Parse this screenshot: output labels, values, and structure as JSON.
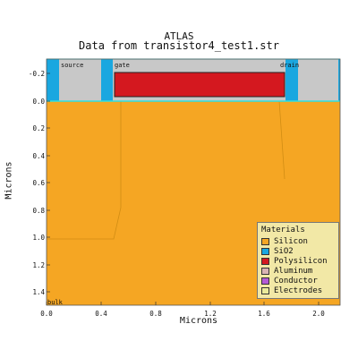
{
  "title": "ATLAS",
  "subtitle": "Data from transistor4_test1.str",
  "axes": {
    "x_label": "Microns",
    "y_label": "Microns",
    "x_ticks": [
      "0.0",
      "0.4",
      "0.8",
      "1.2",
      "1.6",
      "2.0"
    ],
    "y_ticks": [
      "-0.2",
      "0.0",
      "0.2",
      "0.4",
      "0.6",
      "0.8",
      "1.0",
      "1.2",
      "1.4"
    ]
  },
  "region_labels": {
    "source": "source",
    "gate": "gate",
    "drain": "drain",
    "bulk": "bulk"
  },
  "legend": {
    "title": "Materials",
    "items": [
      {
        "label": "Silicon",
        "color": "#f5a623"
      },
      {
        "label": "SiO2",
        "color": "#1aa7e0"
      },
      {
        "label": "Polysilicon",
        "color": "#d4181f"
      },
      {
        "label": "Aluminum",
        "color": "#d9b3b3"
      },
      {
        "label": "Conductor",
        "color": "#b45ad6"
      },
      {
        "label": "Electrodes",
        "color": "#eaea9a"
      }
    ]
  },
  "colors": {
    "silicon": "#f5a623",
    "oxide": "#1aa7e0",
    "polysilicon": "#d4181f",
    "electrode": "#c8c8c8",
    "grid_line": "#d18d14",
    "surface_line": "#2ee0e0"
  }
}
